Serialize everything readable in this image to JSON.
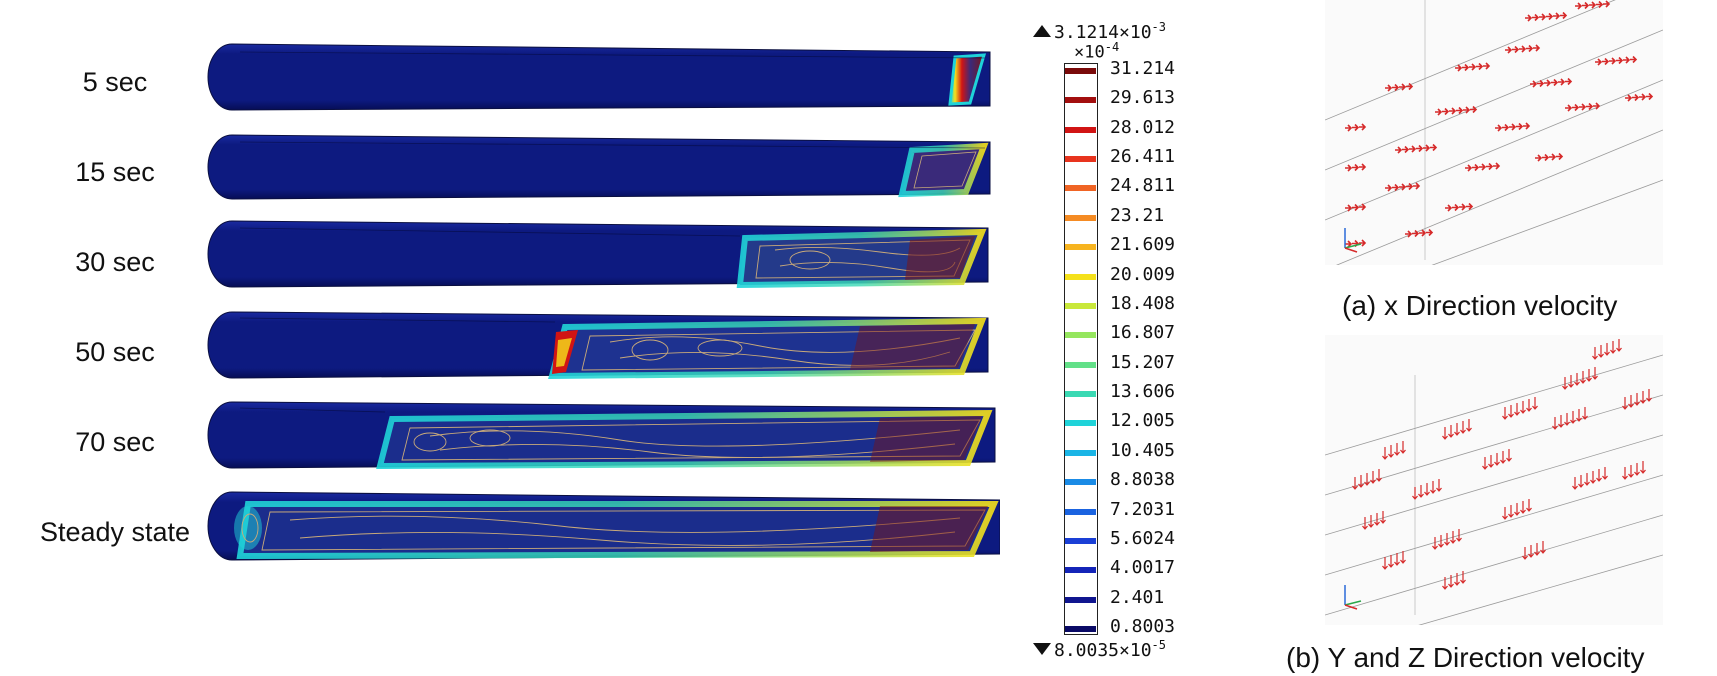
{
  "time_labels": [
    "5 sec",
    "15 sec",
    "30 sec",
    "50 sec",
    "70 sec",
    "Steady state"
  ],
  "colorbar": {
    "max_label": "3.1214×10",
    "max_exp": "-3",
    "scale_label": "×10",
    "scale_exp": "-4",
    "min_label": "8.0035×10",
    "min_exp": "-5",
    "ticks": [
      "31.214",
      "29.613",
      "28.012",
      "26.411",
      "24.811",
      "23.21",
      "21.609",
      "20.009",
      "18.408",
      "16.807",
      "15.207",
      "13.606",
      "12.005",
      "10.405",
      "8.8038",
      "7.2031",
      "5.6024",
      "4.0017",
      "2.401",
      "0.8003"
    ],
    "tick_colors": [
      "#7a0a0a",
      "#a30f0f",
      "#d11414",
      "#e8341e",
      "#f06424",
      "#f58b23",
      "#f7b41f",
      "#f5e11a",
      "#c9e83a",
      "#95e65e",
      "#62e088",
      "#3ad9b3",
      "#1fd3d9",
      "#1ab5e6",
      "#1a8be6",
      "#1a63e0",
      "#1a3fd6",
      "#1424b8",
      "#10158f",
      "#0a0a66"
    ]
  },
  "panels": {
    "a_caption": "(a) x Direction velocity",
    "b_caption": "(b) Y and Z Direction velocity"
  },
  "colors": {
    "tube_body": "#0d1a80",
    "tube_dark": "#081160",
    "hot": "#d11414",
    "contour": "#c8a97a",
    "arrow": "#d62a2a"
  }
}
